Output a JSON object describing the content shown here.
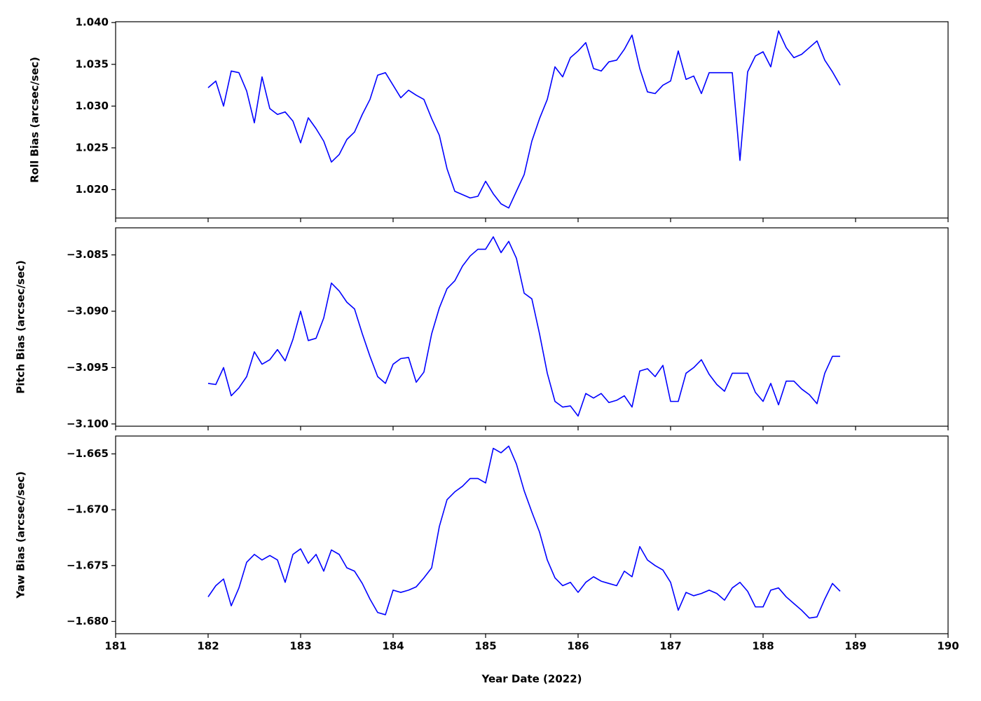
{
  "chart_data": {
    "type": "line",
    "xlabel": "Year Date (2022)",
    "xlim": [
      181,
      190
    ],
    "xticks": [
      181,
      182,
      183,
      184,
      185,
      186,
      187,
      188,
      189,
      190
    ],
    "x": [
      182,
      182.083,
      182.167,
      182.25,
      182.333,
      182.417,
      182.5,
      182.583,
      182.667,
      182.75,
      182.833,
      182.917,
      183,
      183.083,
      183.167,
      183.25,
      183.333,
      183.417,
      183.5,
      183.583,
      183.667,
      183.75,
      183.833,
      183.917,
      184,
      184.083,
      184.167,
      184.25,
      184.333,
      184.417,
      184.5,
      184.583,
      184.667,
      184.75,
      184.833,
      184.917,
      185,
      185.083,
      185.167,
      185.25,
      185.333,
      185.417,
      185.5,
      185.583,
      185.667,
      185.75,
      185.833,
      185.917,
      186,
      186.083,
      186.167,
      186.25,
      186.333,
      186.417,
      186.5,
      186.583,
      186.667,
      186.75,
      186.833,
      186.917,
      187,
      187.083,
      187.167,
      187.25,
      187.333,
      187.417,
      187.5,
      187.583,
      187.667,
      187.75,
      187.833,
      187.917,
      188,
      188.083,
      188.167,
      188.25,
      188.333,
      188.417,
      188.5,
      188.583,
      188.667,
      188.75,
      188.833
    ],
    "panels": [
      {
        "ylabel": "Roll Bias (arcsec/sec)",
        "ylim": [
          1.0166,
          1.0401
        ],
        "yticks": [
          {
            "value": 1.02,
            "label": "1.020"
          },
          {
            "value": 1.025,
            "label": "1.025"
          },
          {
            "value": 1.03,
            "label": "1.030"
          },
          {
            "value": 1.035,
            "label": "1.035"
          },
          {
            "value": 1.04,
            "label": "1.040"
          }
        ],
        "series": [
          {
            "color": "#0000ff",
            "values": [
              1.0322,
              1.033,
              1.03,
              1.0342,
              1.034,
              1.0318,
              1.028,
              1.0335,
              1.0297,
              1.029,
              1.0293,
              1.0282,
              1.0256,
              1.0286,
              1.0273,
              1.0258,
              1.0233,
              1.0242,
              1.026,
              1.0269,
              1.029,
              1.0308,
              1.0337,
              1.034,
              1.0325,
              1.031,
              1.0319,
              1.0313,
              1.0308,
              1.0285,
              1.0265,
              1.0225,
              1.0198,
              1.0194,
              1.019,
              1.0192,
              1.021,
              1.0195,
              1.0183,
              1.0178,
              1.0198,
              1.0218,
              1.0258,
              1.0285,
              1.0308,
              1.0347,
              1.0335,
              1.0358,
              1.0366,
              1.0376,
              1.0345,
              1.0342,
              1.0353,
              1.0355,
              1.0368,
              1.0385,
              1.0345,
              1.0317,
              1.0315,
              1.0325,
              1.033,
              1.0366,
              1.0332,
              1.0336,
              1.0315,
              1.034,
              1.034,
              1.034,
              1.034,
              1.0235,
              1.0341,
              1.036,
              1.0365,
              1.0347,
              1.039,
              1.037,
              1.0358,
              1.0362,
              1.037,
              1.0378,
              1.0355,
              1.0341,
              1.0325
            ]
          }
        ]
      },
      {
        "ylabel": "Pitch Bias (arcsec/sec)",
        "ylim": [
          -3.1002,
          -3.0826
        ],
        "yticks": [
          {
            "value": -3.1,
            "label": "−3.100"
          },
          {
            "value": -3.095,
            "label": "−3.095"
          },
          {
            "value": -3.09,
            "label": "−3.090"
          },
          {
            "value": -3.085,
            "label": "−3.085"
          }
        ],
        "series": [
          {
            "color": "#0000ff",
            "values": [
              -3.0964,
              -3.0965,
              -3.095,
              -3.0975,
              -3.0968,
              -3.0958,
              -3.0936,
              -3.0947,
              -3.0943,
              -3.0934,
              -3.0944,
              -3.0925,
              -3.09,
              -3.0926,
              -3.0924,
              -3.0906,
              -3.0875,
              -3.0882,
              -3.0892,
              -3.0898,
              -3.092,
              -3.094,
              -3.0958,
              -3.0964,
              -3.0947,
              -3.0942,
              -3.0941,
              -3.0963,
              -3.0954,
              -3.092,
              -3.0897,
              -3.088,
              -3.0873,
              -3.086,
              -3.0851,
              -3.0845,
              -3.0845,
              -3.0834,
              -3.0848,
              -3.0838,
              -3.0853,
              -3.0884,
              -3.0889,
              -3.092,
              -3.0955,
              -3.098,
              -3.0985,
              -3.0984,
              -3.0993,
              -3.0973,
              -3.0977,
              -3.0973,
              -3.0981,
              -3.0979,
              -3.0975,
              -3.0985,
              -3.0953,
              -3.0951,
              -3.0958,
              -3.0948,
              -3.098,
              -3.098,
              -3.0955,
              -3.095,
              -3.0943,
              -3.0956,
              -3.0965,
              -3.0971,
              -3.0955,
              -3.0955,
              -3.0955,
              -3.0972,
              -3.098,
              -3.0964,
              -3.0983,
              -3.0962,
              -3.0962,
              -3.0969,
              -3.0974,
              -3.0982,
              -3.0955,
              -3.094,
              -3.094
            ]
          }
        ]
      },
      {
        "ylabel": "Yaw Bias (arcsec/sec)",
        "ylim": [
          -1.6811,
          -1.6634
        ],
        "yticks": [
          {
            "value": -1.68,
            "label": "−1.680"
          },
          {
            "value": -1.675,
            "label": "−1.675"
          },
          {
            "value": -1.67,
            "label": "−1.670"
          },
          {
            "value": -1.665,
            "label": "−1.665"
          }
        ],
        "series": [
          {
            "color": "#0000ff",
            "values": [
              -1.6778,
              -1.6768,
              -1.6762,
              -1.6786,
              -1.677,
              -1.6747,
              -1.674,
              -1.6745,
              -1.6741,
              -1.6745,
              -1.6765,
              -1.674,
              -1.6735,
              -1.6748,
              -1.674,
              -1.6755,
              -1.6736,
              -1.674,
              -1.6752,
              -1.6755,
              -1.6766,
              -1.678,
              -1.6792,
              -1.6794,
              -1.6772,
              -1.6774,
              -1.6772,
              -1.6769,
              -1.6761,
              -1.6752,
              -1.6715,
              -1.6691,
              -1.6684,
              -1.6679,
              -1.6672,
              -1.6672,
              -1.6676,
              -1.6645,
              -1.6649,
              -1.6643,
              -1.6659,
              -1.6683,
              -1.6702,
              -1.672,
              -1.6745,
              -1.6761,
              -1.6768,
              -1.6765,
              -1.6774,
              -1.6765,
              -1.676,
              -1.6764,
              -1.6766,
              -1.6768,
              -1.6755,
              -1.676,
              -1.6733,
              -1.6745,
              -1.675,
              -1.6754,
              -1.6765,
              -1.679,
              -1.6774,
              -1.6777,
              -1.6775,
              -1.6772,
              -1.6775,
              -1.6781,
              -1.677,
              -1.6765,
              -1.6773,
              -1.6787,
              -1.6787,
              -1.6772,
              -1.677,
              -1.6778,
              -1.6784,
              -1.679,
              -1.6797,
              -1.6796,
              -1.678,
              -1.6766,
              -1.6773
            ]
          }
        ]
      }
    ]
  }
}
